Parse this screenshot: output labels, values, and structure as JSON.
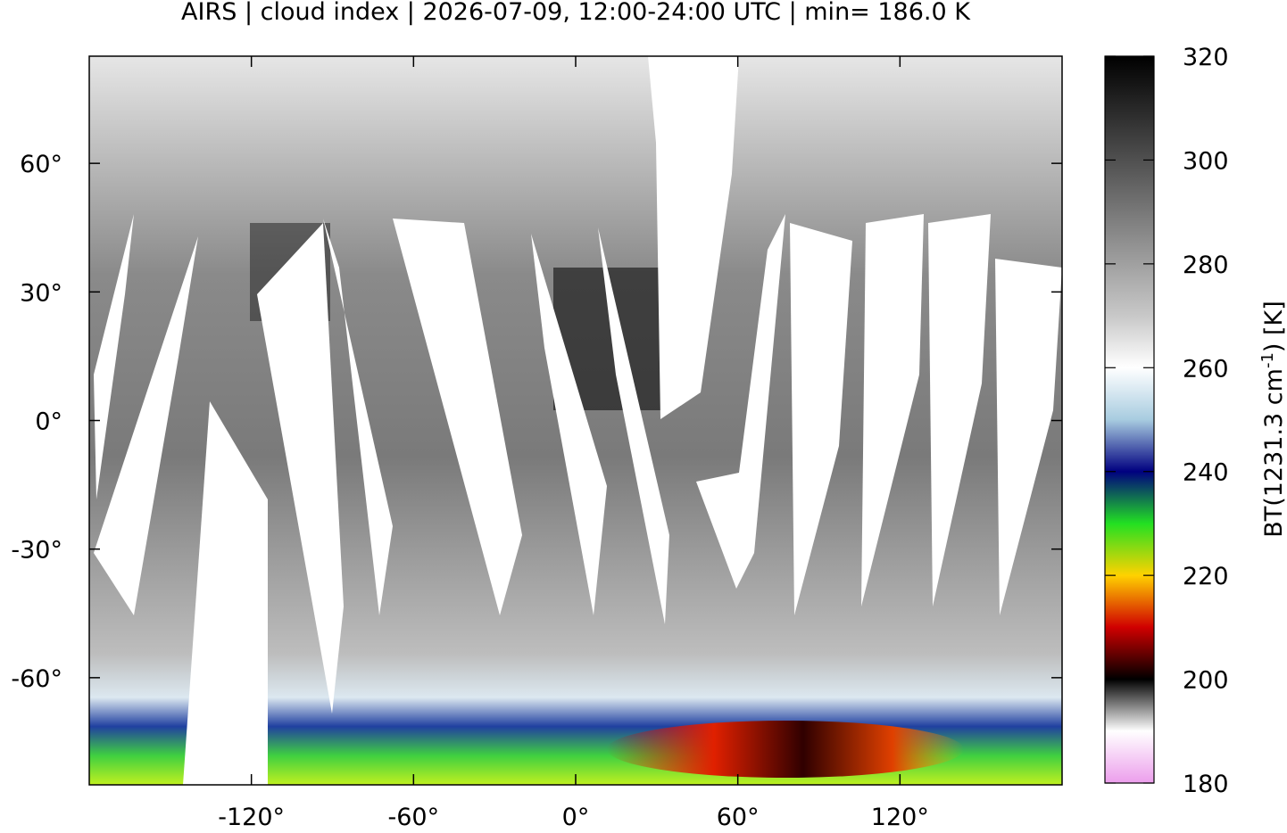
{
  "chart_data": {
    "type": "map",
    "title": "AIRS | cloud index | 2026-07-09, 12:00-24:00 UTC | min= 186.0 K",
    "xlim": [
      -180,
      180
    ],
    "ylim": [
      -85,
      85
    ],
    "xticks": [
      {
        "value": -120,
        "label": "-120°"
      },
      {
        "value": -60,
        "label": "-60°"
      },
      {
        "value": 0,
        "label": "0°"
      },
      {
        "value": 60,
        "label": "60°"
      },
      {
        "value": 120,
        "label": "120°"
      }
    ],
    "yticks": [
      {
        "value": 60,
        "label": "60°"
      },
      {
        "value": 30,
        "label": "30°"
      },
      {
        "value": 0,
        "label": "0°"
      },
      {
        "value": -30,
        "label": "-30°"
      },
      {
        "value": -60,
        "label": "-60°"
      }
    ],
    "colorbar": {
      "lim": [
        180,
        320
      ],
      "ticks": [
        180,
        200,
        220,
        240,
        260,
        280,
        300,
        320
      ],
      "label": {
        "main": "BT(1231.3 cm",
        "sup": "-1",
        "tail": ") [K]"
      },
      "colors": [
        "#ec9eec",
        "#ffffff",
        "#000000",
        "#d00000",
        "#ffd200",
        "#22e022",
        "#000080",
        "#a8cce0",
        "#ffffff",
        "#c8c8c8",
        "#a0a0a0",
        "#787878",
        "#505050",
        "#282828",
        "#000000"
      ]
    }
  }
}
